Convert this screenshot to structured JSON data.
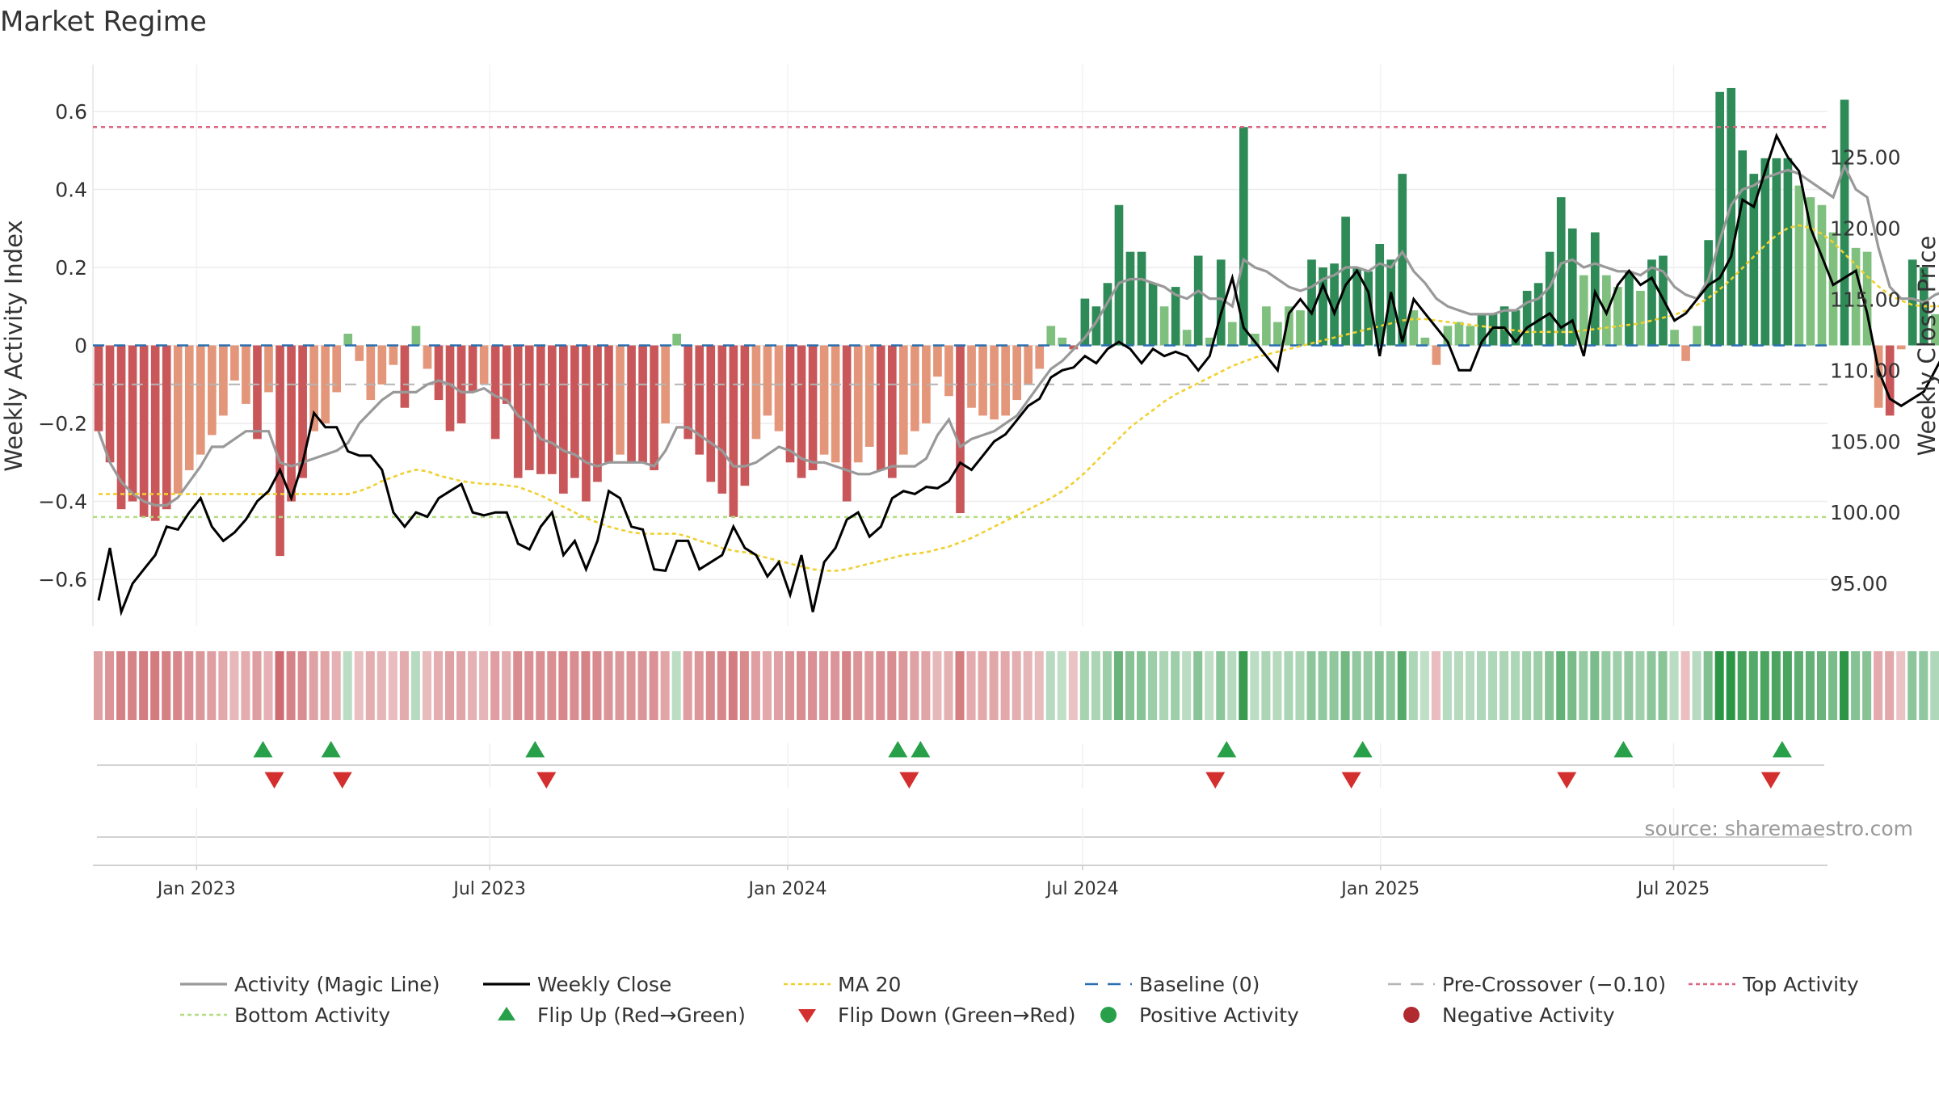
{
  "chart_data": {
    "type": "bar",
    "title": "Market Regime",
    "source": "source: sharemaestro.com",
    "left_axis": {
      "label": "Weekly Activity Index",
      "ylim": [
        -0.72,
        0.72
      ],
      "ticks": [
        -0.6,
        -0.4,
        -0.2,
        0,
        0.2,
        0.4,
        0.6
      ],
      "tick_labels": [
        "−0.6",
        "−0.4",
        "−0.2",
        "0",
        "0.2",
        "0.4",
        "0.6"
      ]
    },
    "right_axis": {
      "label": "Weekly Close Price",
      "ylim": [
        92.0,
        131.5
      ],
      "ticks": [
        95,
        100,
        105,
        110,
        115,
        120,
        125
      ],
      "tick_labels": [
        "95.00",
        "100.00",
        "105.00",
        "110.00",
        "115.00",
        "120.00",
        "125.00"
      ]
    },
    "x_axis": {
      "start": "2022-10-29",
      "end": "2025-10-04",
      "ticks": [
        "2023-01-01",
        "2023-07-01",
        "2024-01-01",
        "2024-07-01",
        "2025-01-01",
        "2025-07-01"
      ],
      "tick_labels": [
        "Jan 2023",
        "Jul 2023",
        "Jan 2024",
        "Jul 2024",
        "Jan 2025",
        "Jul 2025"
      ]
    },
    "grid": true,
    "reference_lines": {
      "baseline": 0,
      "pre_crossover": -0.1,
      "top_activity": 0.56,
      "bottom_activity": -0.44
    },
    "weeks_start": "2022-10-29",
    "activity": [
      -0.22,
      -0.3,
      -0.42,
      -0.4,
      -0.44,
      -0.45,
      -0.42,
      -0.38,
      -0.32,
      -0.28,
      -0.23,
      -0.18,
      -0.09,
      -0.15,
      -0.24,
      -0.12,
      -0.54,
      -0.4,
      -0.34,
      -0.22,
      -0.2,
      -0.12,
      0.03,
      -0.04,
      -0.14,
      -0.1,
      -0.05,
      -0.16,
      0.05,
      -0.06,
      -0.14,
      -0.22,
      -0.2,
      -0.12,
      -0.1,
      -0.24,
      -0.15,
      -0.34,
      -0.32,
      -0.33,
      -0.33,
      -0.38,
      -0.34,
      -0.4,
      -0.35,
      -0.3,
      -0.28,
      -0.3,
      -0.3,
      -0.32,
      -0.2,
      0.03,
      -0.24,
      -0.28,
      -0.35,
      -0.38,
      -0.44,
      -0.36,
      -0.24,
      -0.18,
      -0.22,
      -0.3,
      -0.34,
      -0.32,
      -0.28,
      -0.3,
      -0.4,
      -0.3,
      -0.26,
      -0.32,
      -0.34,
      -0.28,
      -0.22,
      -0.2,
      -0.08,
      -0.13,
      -0.43,
      -0.16,
      -0.18,
      -0.19,
      -0.18,
      -0.14,
      -0.1,
      -0.06,
      0.05,
      0.02,
      -0.01,
      0.12,
      0.1,
      0.16,
      0.36,
      0.24,
      0.24,
      0.16,
      0.1,
      0.15,
      0.04,
      0.23,
      0.02,
      0.22,
      0.06,
      0.56,
      0.03,
      0.1,
      0.06,
      0.1,
      0.09,
      0.22,
      0.2,
      0.21,
      0.33,
      0.2,
      0.19,
      0.26,
      0.22,
      0.44,
      0.09,
      0.02,
      -0.05,
      0.05,
      0.06,
      0.05,
      0.08,
      0.08,
      0.1,
      0.09,
      0.14,
      0.16,
      0.24,
      0.38,
      0.3,
      0.18,
      0.29,
      0.18,
      0.15,
      0.19,
      0.14,
      0.22,
      0.23,
      0.04,
      -0.04,
      0.05,
      0.27,
      0.65,
      0.66,
      0.5,
      0.44,
      0.48,
      0.48,
      0.48,
      0.41,
      0.38,
      0.36,
      0.29,
      0.63,
      0.25,
      0.24,
      -0.16,
      -0.18,
      -0.01,
      0.22,
      0.2,
      0.08,
      0.2,
      0.14,
      0.22,
      0.26,
      0.33,
      0.34,
      0.33,
      0.43,
      0.44,
      0.33,
      0.36,
      0.24,
      0.12,
      -0.01,
      0.05,
      0.25,
      0.1,
      0.1,
      0.16,
      0.23
    ],
    "magic_line": [
      -0.22,
      -0.3,
      -0.35,
      -0.38,
      -0.4,
      -0.41,
      -0.41,
      -0.39,
      -0.35,
      -0.31,
      -0.26,
      -0.26,
      -0.24,
      -0.22,
      -0.22,
      -0.22,
      -0.3,
      -0.31,
      -0.3,
      -0.29,
      -0.28,
      -0.27,
      -0.25,
      -0.2,
      -0.17,
      -0.14,
      -0.12,
      -0.12,
      -0.12,
      -0.1,
      -0.09,
      -0.1,
      -0.12,
      -0.12,
      -0.11,
      -0.13,
      -0.14,
      -0.18,
      -0.2,
      -0.24,
      -0.25,
      -0.27,
      -0.28,
      -0.3,
      -0.31,
      -0.3,
      -0.3,
      -0.3,
      -0.3,
      -0.31,
      -0.27,
      -0.21,
      -0.21,
      -0.23,
      -0.25,
      -0.27,
      -0.31,
      -0.31,
      -0.3,
      -0.28,
      -0.26,
      -0.27,
      -0.29,
      -0.3,
      -0.3,
      -0.31,
      -0.32,
      -0.33,
      -0.33,
      -0.32,
      -0.31,
      -0.31,
      -0.31,
      -0.29,
      -0.23,
      -0.19,
      -0.26,
      -0.24,
      -0.23,
      -0.22,
      -0.2,
      -0.18,
      -0.14,
      -0.1,
      -0.06,
      -0.04,
      -0.01,
      0.02,
      0.06,
      0.11,
      0.16,
      0.17,
      0.17,
      0.16,
      0.15,
      0.13,
      0.12,
      0.14,
      0.12,
      0.12,
      0.1,
      0.22,
      0.2,
      0.19,
      0.17,
      0.15,
      0.14,
      0.15,
      0.17,
      0.18,
      0.2,
      0.2,
      0.19,
      0.21,
      0.2,
      0.24,
      0.19,
      0.16,
      0.12,
      0.1,
      0.09,
      0.08,
      0.08,
      0.08,
      0.09,
      0.09,
      0.11,
      0.12,
      0.15,
      0.21,
      0.22,
      0.2,
      0.21,
      0.2,
      0.19,
      0.19,
      0.18,
      0.2,
      0.19,
      0.15,
      0.13,
      0.12,
      0.17,
      0.27,
      0.36,
      0.4,
      0.41,
      0.43,
      0.44,
      0.45,
      0.44,
      0.42,
      0.4,
      0.38,
      0.46,
      0.4,
      0.38,
      0.25,
      0.15,
      0.12,
      0.12,
      0.11,
      0.13,
      0.14,
      0.15,
      0.17,
      0.19,
      0.23,
      0.26,
      0.29,
      0.33,
      0.35,
      0.34,
      0.3,
      0.24,
      0.2,
      0.16,
      0.15,
      0.14,
      0.14,
      0.14,
      0.16
    ],
    "weekly_close": [
      93.8,
      97.5,
      93.0,
      95.0,
      96.0,
      97.0,
      99.0,
      98.8,
      100.0,
      101.0,
      99.0,
      98.0,
      98.6,
      99.5,
      100.8,
      101.5,
      103.0,
      101.0,
      103.5,
      107.0,
      106.0,
      106.0,
      104.3,
      104.0,
      104.0,
      103.0,
      100.0,
      99.0,
      100.0,
      99.7,
      101.0,
      101.5,
      102.0,
      100.0,
      99.8,
      100.0,
      100.0,
      97.8,
      97.4,
      99.0,
      100.0,
      97.0,
      98.0,
      96.0,
      98.0,
      101.5,
      101.0,
      99.0,
      98.8,
      96.0,
      95.9,
      98.0,
      98.0,
      96.0,
      96.5,
      97.0,
      99.0,
      97.5,
      97.0,
      95.5,
      96.5,
      94.2,
      97.0,
      93.0,
      96.5,
      97.5,
      99.5,
      100.0,
      98.3,
      99.0,
      101.0,
      101.5,
      101.3,
      101.8,
      101.7,
      102.2,
      103.5,
      103.0,
      104.0,
      105.0,
      105.5,
      106.5,
      107.5,
      108.0,
      109.5,
      110.0,
      110.2,
      111.0,
      110.5,
      111.5,
      112.0,
      111.5,
      110.5,
      111.5,
      111.0,
      111.3,
      111.0,
      110.0,
      111.0,
      114.0,
      116.5,
      113.0,
      112.0,
      111.0,
      110.0,
      114.0,
      115.0,
      114.0,
      116.0,
      114.0,
      116.0,
      117.0,
      115.5,
      111.0,
      115.5,
      112.0,
      115.0,
      114.0,
      113.0,
      112.0,
      110.0,
      110.0,
      112.0,
      113.0,
      113.0,
      112.0,
      113.0,
      113.5,
      114.0,
      113.0,
      113.5,
      111.0,
      115.5,
      114.0,
      116.0,
      117.0,
      116.0,
      116.5,
      115.0,
      113.5,
      114.0,
      115.0,
      116.0,
      116.5,
      118.0,
      122.0,
      121.5,
      124.0,
      126.5,
      125.0,
      124.0,
      120.0,
      118.0,
      116.0,
      116.5,
      117.0,
      114.0,
      110.0,
      108.0,
      107.5,
      108.0,
      108.5,
      110.0,
      111.5,
      112.5,
      112.0,
      114.0,
      116.5,
      115.0,
      114.0,
      114.5,
      116.0,
      118.0,
      119.5,
      120.5,
      120.5,
      122.0,
      121.5,
      122.0,
      124.0,
      122.5,
      123.0,
      123.5,
      123.0,
      124.0,
      125.5,
      126.8,
      127.5
    ],
    "ma20": [
      101.3,
      101.3,
      101.3,
      101.3,
      101.3,
      101.3,
      101.3,
      101.3,
      101.3,
      101.3,
      101.3,
      101.3,
      101.3,
      101.3,
      101.3,
      101.3,
      101.3,
      101.3,
      101.3,
      101.3,
      101.3,
      101.3,
      101.3,
      101.5,
      101.8,
      102.2,
      102.5,
      102.8,
      103.0,
      102.9,
      102.6,
      102.4,
      102.2,
      102.1,
      102.0,
      102.0,
      101.9,
      101.8,
      101.5,
      101.2,
      100.8,
      100.4,
      100.0,
      99.6,
      99.3,
      99.0,
      98.8,
      98.6,
      98.5,
      98.5,
      98.5,
      98.5,
      98.3,
      98.0,
      97.8,
      97.5,
      97.3,
      97.2,
      97.0,
      96.8,
      96.6,
      96.4,
      96.2,
      96.0,
      95.9,
      95.9,
      96.0,
      96.2,
      96.4,
      96.6,
      96.8,
      97.0,
      97.1,
      97.2,
      97.4,
      97.6,
      97.9,
      98.2,
      98.6,
      99.0,
      99.4,
      99.8,
      100.2,
      100.6,
      101.0,
      101.5,
      102.1,
      102.8,
      103.6,
      104.4,
      105.2,
      106.0,
      106.6,
      107.2,
      107.8,
      108.3,
      108.7,
      109.1,
      109.5,
      109.9,
      110.3,
      110.6,
      110.9,
      111.1,
      111.3,
      111.5,
      111.7,
      111.9,
      112.1,
      112.3,
      112.5,
      112.7,
      112.9,
      113.1,
      113.3,
      113.5,
      113.6,
      113.6,
      113.5,
      113.4,
      113.3,
      113.2,
      113.1,
      113.0,
      112.9,
      112.8,
      112.7,
      112.7,
      112.7,
      112.7,
      112.7,
      112.8,
      112.9,
      113.0,
      113.1,
      113.2,
      113.3,
      113.5,
      113.7,
      113.9,
      114.2,
      114.6,
      115.1,
      115.7,
      116.4,
      117.2,
      118.0,
      118.8,
      119.5,
      120.0,
      120.2,
      120.0,
      119.6,
      119.0,
      118.2,
      117.4,
      116.6,
      115.9,
      115.3,
      114.9,
      114.6,
      114.5,
      114.5,
      114.5,
      114.5,
      114.5,
      114.6,
      114.7,
      114.8,
      115.0,
      115.3,
      115.7,
      116.2,
      116.8,
      117.4,
      118.0,
      118.6,
      119.2,
      119.8,
      120.3,
      120.8,
      121.3,
      121.8,
      122.3,
      122.9,
      123.4
    ],
    "pct_flip_up": [
      "2023-02-11",
      "2023-03-25",
      "2023-07-29",
      "2024-03-09",
      "2024-03-23",
      "2024-09-28",
      "2024-12-21",
      "2025-05-31",
      "2025-09-06"
    ],
    "flip_down": [
      "2023-02-18",
      "2023-04-01",
      "2023-08-05",
      "2024-03-16",
      "2024-09-21",
      "2024-12-14",
      "2025-04-26",
      "2025-08-30"
    ],
    "colors": {
      "bar_neg_strong": "#c9575a",
      "bar_neg_light": "#e3967a",
      "bar_pos_strong": "#2e8a57",
      "bar_pos_light": "#7fc07e",
      "magic_line": "#999999",
      "weekly_close": "#000000",
      "ma20": "#f0d030",
      "baseline": "#2a6fb0",
      "pre_crossover": "#b5b5b5",
      "top_activity": "#dd6680",
      "bottom_activity": "#b4dd82",
      "flip_up": "#27a049",
      "flip_down": "#d32f2f",
      "positive_activity": "#27a049",
      "negative_activity": "#b02a30"
    },
    "legend": [
      {
        "label": "Activity (Magic Line)",
        "style": "line",
        "color": "#999999"
      },
      {
        "label": "Weekly Close",
        "style": "line",
        "color": "#000000"
      },
      {
        "label": "MA 20",
        "style": "dotted",
        "color": "#f0d030"
      },
      {
        "label": "Baseline (0)",
        "style": "dashed",
        "color": "#2a6fb0"
      },
      {
        "label": "Pre-Crossover (−0.10)",
        "style": "dashed",
        "color": "#b5b5b5"
      },
      {
        "label": "Top Activity",
        "style": "dotted",
        "color": "#dd6680"
      },
      {
        "label": "Bottom Activity",
        "style": "dotted",
        "color": "#b4dd82"
      },
      {
        "label": "Flip Up (Red→Green)",
        "style": "tri-up",
        "color": "#27a049"
      },
      {
        "label": "Flip Down (Green→Red)",
        "style": "tri-down",
        "color": "#d32f2f"
      },
      {
        "label": "Positive Activity",
        "style": "dot",
        "color": "#27a049"
      },
      {
        "label": "Negative Activity",
        "style": "dot",
        "color": "#b02a30"
      }
    ],
    "legend_placement": "bottom"
  }
}
